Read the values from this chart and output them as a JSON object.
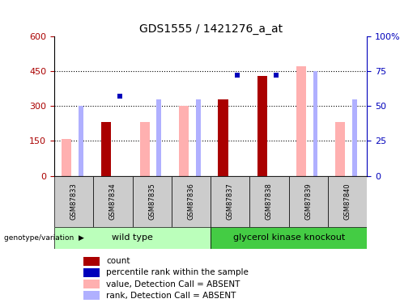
{
  "title": "GDS1555 / 1421276_a_at",
  "samples": [
    "GSM87833",
    "GSM87834",
    "GSM87835",
    "GSM87836",
    "GSM87837",
    "GSM87838",
    "GSM87839",
    "GSM87840"
  ],
  "count_values": [
    null,
    230,
    null,
    null,
    330,
    430,
    null,
    null
  ],
  "rank_pct": [
    null,
    57,
    null,
    null,
    72,
    72,
    null,
    null
  ],
  "absent_value": [
    160,
    null,
    230,
    300,
    null,
    null,
    470,
    230
  ],
  "absent_rank_pct": [
    50,
    null,
    55,
    55,
    null,
    null,
    75,
    55
  ],
  "ylim_left": [
    0,
    600
  ],
  "ylim_right": [
    0,
    100
  ],
  "yticks_left": [
    0,
    150,
    300,
    450,
    600
  ],
  "yticks_right": [
    0,
    25,
    50,
    75,
    100
  ],
  "ytick_labels_left": [
    "0",
    "150",
    "300",
    "450",
    "600"
  ],
  "ytick_labels_right": [
    "0",
    "25",
    "50",
    "75",
    "100%"
  ],
  "hline_values": [
    150,
    300,
    450
  ],
  "wild_type_label": "wild type",
  "knockout_label": "glycerol kinase knockout",
  "genotype_label": "genotype/variation",
  "color_count": "#aa0000",
  "color_rank": "#0000bb",
  "color_absent_value": "#ffb0b0",
  "color_absent_rank": "#b0b0ff",
  "color_wild_bg": "#bbffbb",
  "color_knockout_bg": "#44cc44",
  "color_sample_bg": "#cccccc",
  "legend_items": [
    "count",
    "percentile rank within the sample",
    "value, Detection Call = ABSENT",
    "rank, Detection Call = ABSENT"
  ]
}
